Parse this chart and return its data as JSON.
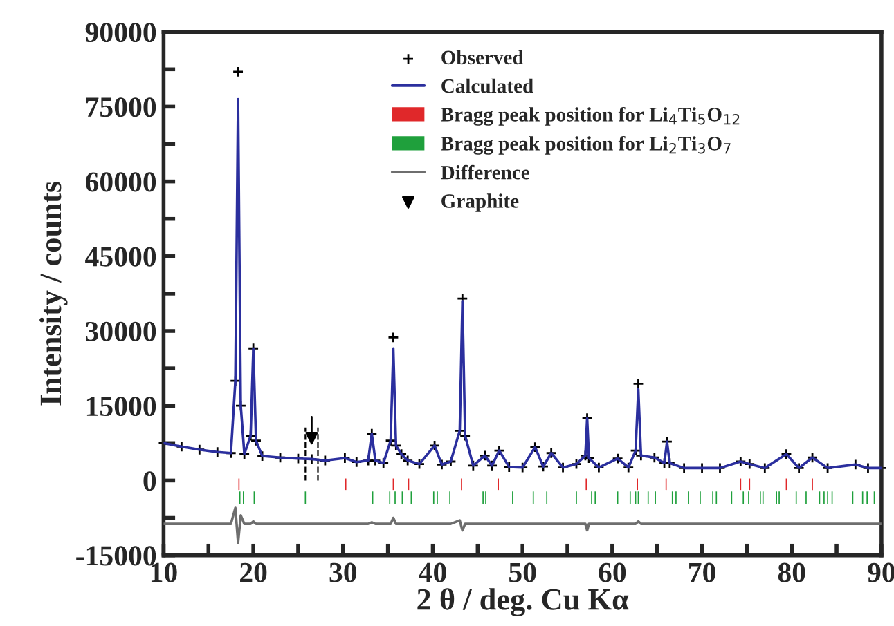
{
  "chart_data": {
    "type": "line",
    "xlabel": "2 θ / deg. Cu Kα",
    "ylabel": "Intensity / counts",
    "xlim": [
      10,
      90
    ],
    "ylim": [
      -15000,
      90000
    ],
    "xticks": [
      10,
      {
        "value": 15,
        "label": null
      },
      20,
      {
        "value": 25,
        "label": null
      },
      30,
      {
        "value": 35,
        "label": null
      },
      40,
      {
        "value": 45,
        "label": null
      },
      50,
      {
        "value": 55,
        "label": null
      },
      60,
      {
        "value": 65,
        "label": null
      },
      70,
      {
        "value": 75,
        "label": null
      },
      80,
      {
        "value": 85,
        "label": null
      },
      90
    ],
    "yticks": [
      -15000,
      {
        "value": -7500,
        "label": null
      },
      0,
      {
        "value": 7500,
        "label": null
      },
      15000,
      {
        "value": 22500,
        "label": null
      },
      30000,
      {
        "value": 37500,
        "label": null
      },
      45000,
      {
        "value": 52500,
        "label": null
      },
      60000,
      {
        "value": 67500,
        "label": null
      },
      75000,
      {
        "value": 82500,
        "label": null
      },
      90000
    ],
    "grid": false,
    "legend": "top right",
    "x": [
      10,
      12,
      14,
      16,
      17.5,
      18.0,
      18.3,
      18.6,
      19.0,
      19.7,
      20.0,
      20.3,
      21,
      23,
      25,
      26.5,
      28,
      30.2,
      31.5,
      32.8,
      33.2,
      33.6,
      34.5,
      35.3,
      35.6,
      35.9,
      36.5,
      37.2,
      38.5,
      40.2,
      41,
      42,
      43.0,
      43.3,
      43.6,
      44.5,
      45.8,
      46.6,
      47.4,
      48.5,
      50,
      51.4,
      52.3,
      53.2,
      54.5,
      56,
      57.0,
      57.2,
      57.4,
      58.5,
      60.6,
      61.8,
      62.6,
      62.9,
      63.2,
      64.7,
      65.8,
      66.1,
      66.4,
      68,
      70,
      72,
      74.3,
      75.3,
      77,
      79.4,
      80.8,
      82.3,
      84,
      87.1,
      88.5,
      90
    ],
    "series": [
      {
        "name": "Observed",
        "type": "scatter",
        "marker": "cross",
        "color": "#000000",
        "values": [
          7500,
          6800,
          6200,
          5700,
          5500,
          20000,
          82000,
          15000,
          5300,
          9000,
          26500,
          8000,
          4900,
          4600,
          4400,
          4300,
          4000,
          4500,
          3700,
          4000,
          9400,
          4000,
          3500,
          8000,
          28700,
          7000,
          5300,
          4000,
          3300,
          7000,
          3200,
          3800,
          10000,
          36500,
          9000,
          3000,
          5000,
          3000,
          6000,
          2700,
          2600,
          6700,
          2800,
          5500,
          2600,
          3300,
          5000,
          12500,
          4500,
          2600,
          4400,
          2600,
          6000,
          19400,
          5000,
          4600,
          3500,
          7800,
          3500,
          2500,
          2500,
          2500,
          3800,
          3300,
          2500,
          5300,
          2500,
          4600,
          2500,
          3200,
          2500,
          2500
        ]
      },
      {
        "name": "Calculated",
        "line_style": "solid",
        "color": "#2b2f9e",
        "values": [
          7500,
          6800,
          6200,
          5700,
          5500,
          20000,
          76500,
          15000,
          5300,
          9000,
          26500,
          8000,
          4900,
          4600,
          4400,
          4300,
          4000,
          4500,
          3700,
          4000,
          9400,
          4000,
          3500,
          8000,
          26500,
          7000,
          5300,
          4000,
          3300,
          7000,
          3200,
          3800,
          10000,
          36000,
          9000,
          3000,
          5000,
          3000,
          6000,
          2700,
          2600,
          6700,
          2800,
          5500,
          2600,
          3300,
          5000,
          12500,
          4500,
          2600,
          4400,
          2600,
          6000,
          18300,
          5000,
          4600,
          3500,
          7800,
          3500,
          2500,
          2500,
          2500,
          3800,
          3300,
          2500,
          5300,
          2500,
          4600,
          2500,
          3200,
          2500,
          2500
        ]
      },
      {
        "name": "Bragg peak position for Li$_{4}$Ti$_{5}$O$_{12}$",
        "type": "bar",
        "base": [
          -1900,
          -1900,
          -1900,
          -1900,
          -1900,
          -1900,
          -1900,
          -1900,
          -1900,
          -1900,
          -1900,
          -1900,
          -1900
        ],
        "color": "#e0282a",
        "x": [
          18.4,
          30.3,
          35.6,
          37.3,
          43.2,
          47.3,
          57.1,
          62.8,
          66.0,
          74.3,
          75.3,
          79.4,
          82.3
        ],
        "values": [
          2300,
          2300,
          2300,
          2300,
          2300,
          2300,
          2300,
          2300,
          2300,
          2300,
          2300,
          2300,
          2300
        ]
      },
      {
        "name": "Bragg peak position for Li$_{2}$Ti$_{3}$O$_{7}$",
        "type": "bar",
        "base": [
          -4700,
          -4700,
          -4700,
          -4700,
          -4700,
          -4700,
          -4700,
          -4700,
          -4700,
          -4700,
          -4700,
          -4700,
          -4700,
          -4700,
          -4700,
          -4700,
          -4700,
          -4700,
          -4700,
          -4700,
          -4700,
          -4700,
          -4700,
          -4700,
          -4700,
          -4700,
          -4700,
          -4700,
          -4700,
          -4700,
          -4700,
          -4700,
          -4700,
          -4700,
          -4700,
          -4700,
          -4700,
          -4700,
          -4700,
          -4700,
          -4700,
          -4700,
          -4700,
          -4700,
          -4700,
          -4700,
          -4700,
          -4700,
          -4700
        ],
        "color": "#1fa03c",
        "x": [
          18.5,
          18.9,
          20.1,
          25.8,
          33.3,
          35.2,
          35.8,
          36.6,
          37.6,
          40.1,
          40.5,
          41.9,
          45.6,
          45.9,
          48.9,
          51.2,
          52.7,
          56.0,
          57.7,
          58.1,
          60.6,
          62.0,
          62.6,
          62.9,
          64.0,
          64.8,
          66.7,
          67.1,
          68.5,
          69.8,
          71.2,
          71.6,
          73.3,
          74.6,
          75.2,
          76.5,
          76.8,
          78.3,
          78.6,
          80.5,
          81.6,
          83.1,
          83.6,
          84.0,
          84.5,
          86.8,
          87.9,
          88.4,
          89.2
        ],
        "values": [
          2500,
          2500,
          2500,
          2500,
          2500,
          2500,
          2500,
          2500,
          2500,
          2500,
          2500,
          2500,
          2500,
          2500,
          2500,
          2500,
          2500,
          2500,
          2500,
          2500,
          2500,
          2500,
          2500,
          2500,
          2500,
          2500,
          2500,
          2500,
          2500,
          2500,
          2500,
          2500,
          2500,
          2500,
          2500,
          2500,
          2500,
          2500,
          2500,
          2500,
          2500,
          2500,
          2500,
          2500,
          2500,
          2500,
          2500,
          2500,
          2500
        ]
      },
      {
        "name": "Difference",
        "line_style": "solid",
        "color": "#6e6e6e",
        "values": [
          -8700,
          -8700,
          -8700,
          -8700,
          -8700,
          -5500,
          -12500,
          -7000,
          -8700,
          -8700,
          -8200,
          -8700,
          -8700,
          -8700,
          -8700,
          -8700,
          -8700,
          -8700,
          -8700,
          -8700,
          -8400,
          -8700,
          -8700,
          -8700,
          -7500,
          -8700,
          -8700,
          -8700,
          -8700,
          -8700,
          -8700,
          -8700,
          -8000,
          -10000,
          -8700,
          -8700,
          -8700,
          -8700,
          -8700,
          -8700,
          -8700,
          -8700,
          -8700,
          -8700,
          -8700,
          -8700,
          -8700,
          -10000,
          -8700,
          -8700,
          -8700,
          -8700,
          -8700,
          -8200,
          -8700,
          -8700,
          -8700,
          -8700,
          -8700,
          -8700,
          -8700,
          -8700,
          -8700,
          -8700,
          -8700,
          -8700,
          -8700,
          -8700,
          -8700,
          -8700,
          -8700,
          -8700
        ]
      },
      {
        "name": "Graphite",
        "type": "scatter",
        "marker": "triangle",
        "color": "#000000",
        "x": [
          26.5
        ],
        "values": [
          8500
        ]
      }
    ]
  }
}
